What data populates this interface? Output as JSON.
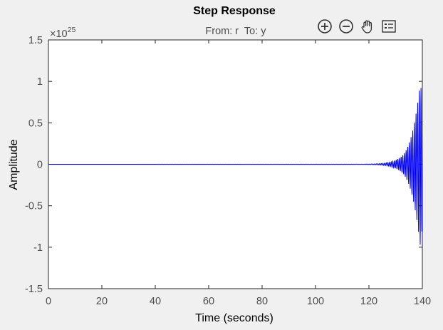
{
  "chart_data": {
    "type": "line",
    "title": "Step Response",
    "subtitle": "From: r  To: y",
    "xlabel": "Time (seconds)",
    "ylabel": "Amplitude",
    "exponent_label_base": "×10",
    "exponent_label_power": "25",
    "xlim": [
      0,
      140
    ],
    "ylim": [
      -1.5,
      1.5
    ],
    "xticks": [
      "0",
      "20",
      "40",
      "60",
      "80",
      "100",
      "120",
      "140"
    ],
    "yticks": [
      "1.5",
      "1",
      "0.5",
      "0",
      "-0.5",
      "-1",
      "-1.5"
    ],
    "grid": false,
    "series": [
      {
        "color": "#0000ff",
        "envelope_points": [
          {
            "x": 0,
            "y": 0
          },
          {
            "x": 118,
            "y": 0.002
          },
          {
            "x": 122,
            "y": 0.005
          },
          {
            "x": 126,
            "y": 0.015
          },
          {
            "x": 130,
            "y": 0.05
          },
          {
            "x": 133,
            "y": 0.12
          },
          {
            "x": 135,
            "y": 0.25
          },
          {
            "x": 137,
            "y": 0.5
          },
          {
            "x": 138.5,
            "y": 0.8
          },
          {
            "x": 139.3,
            "y": 1.0
          },
          {
            "x": 140,
            "y": 0.75
          }
        ],
        "oscillation_period": 0.62
      }
    ]
  },
  "toolbar": {
    "zoom_in_icon": "zoom-in-icon",
    "zoom_out_icon": "zoom-out-icon",
    "pan_icon": "pan-hand-icon",
    "legend_icon": "legend-icon"
  }
}
